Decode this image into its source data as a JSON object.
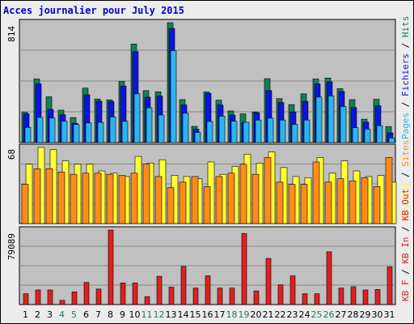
{
  "title": "Acces journalier pour July 2015",
  "colors": {
    "pages": "#2bb5f0",
    "fichiers": "#0a16dc",
    "hits": "#128055",
    "visites": "#ffff33",
    "sites": "#ff8c1a",
    "kbin": "#e02020",
    "day_label": "#000000",
    "weekend_label": "#227755",
    "plot_bg": "#c0c0c0"
  },
  "chart_data": [
    {
      "type": "bar",
      "panel": "top",
      "max_label": "814",
      "ylim": [
        0,
        814
      ],
      "legend": [
        "Pages",
        "/",
        "Fichiers",
        "/",
        "Hits"
      ],
      "categories": [
        "1",
        "2",
        "3",
        "4",
        "5",
        "6",
        "7",
        "8",
        "9",
        "10",
        "11",
        "12",
        "13",
        "14",
        "15",
        "16",
        "17",
        "18",
        "19",
        "20",
        "21",
        "22",
        "23",
        "24",
        "25",
        "26",
        "27",
        "28",
        "29",
        "30",
        "31"
      ],
      "series": [
        {
          "name": "Hits",
          "values": [
            205,
            432,
            311,
            220,
            170,
            370,
            296,
            290,
            415,
            669,
            353,
            345,
            814,
            292,
            110,
            344,
            288,
            215,
            195,
            208,
            434,
            299,
            258,
            331,
            432,
            438,
            366,
            292,
            159,
            294,
            109
          ]
        },
        {
          "name": "Fichiers",
          "values": [
            195,
            398,
            225,
            189,
            131,
            325,
            281,
            278,
            384,
            617,
            308,
            315,
            775,
            256,
            91,
            334,
            255,
            187,
            136,
            202,
            353,
            271,
            208,
            280,
            398,
            412,
            347,
            238,
            138,
            250,
            66
          ]
        },
        {
          "name": "Pages",
          "values": [
            103,
            171,
            167,
            145,
            123,
            133,
            137,
            174,
            145,
            331,
            236,
            187,
            625,
            199,
            68,
            143,
            179,
            145,
            138,
            153,
            166,
            153,
            123,
            153,
            309,
            317,
            245,
            101,
            91,
            115,
            31
          ]
        }
      ]
    },
    {
      "type": "bar",
      "panel": "middle",
      "max_label": "68",
      "ylim": [
        0,
        68
      ],
      "legend": [
        "Visites",
        "/",
        "Sites"
      ],
      "categories": [
        "1",
        "2",
        "3",
        "4",
        "5",
        "6",
        "7",
        "8",
        "9",
        "10",
        "11",
        "12",
        "13",
        "14",
        "15",
        "16",
        "17",
        "18",
        "19",
        "20",
        "21",
        "22",
        "23",
        "24",
        "25",
        "26",
        "27",
        "28",
        "29",
        "30",
        "31"
      ],
      "series": [
        {
          "name": "Visites",
          "values": [
            53,
            68,
            66,
            56,
            53,
            53,
            47,
            45,
            42,
            60,
            54,
            57,
            43,
            42,
            40,
            55,
            44,
            51,
            62,
            54,
            64,
            50,
            42,
            41,
            59,
            45,
            56,
            47,
            42,
            43,
            37
          ]
        },
        {
          "name": "Sites",
          "values": [
            35,
            49,
            49,
            46,
            44,
            45,
            45,
            44,
            43,
            45,
            53,
            42,
            32,
            37,
            42,
            33,
            42,
            45,
            53,
            44,
            59,
            37,
            35,
            35,
            55,
            37,
            40,
            38,
            41,
            33,
            59
          ]
        }
      ]
    },
    {
      "type": "bar",
      "panel": "bottom",
      "max_label": "79089",
      "ylim": [
        0,
        79089
      ],
      "legend": [
        "KB F",
        "/",
        "KB In",
        "/",
        "KB Out"
      ],
      "categories": [
        "1",
        "2",
        "3",
        "4",
        "5",
        "6",
        "7",
        "8",
        "9",
        "10",
        "11",
        "12",
        "13",
        "14",
        "15",
        "16",
        "17",
        "18",
        "19",
        "20",
        "21",
        "22",
        "23",
        "24",
        "25",
        "26",
        "27",
        "28",
        "29",
        "30",
        "31"
      ],
      "weekend_days": [
        "4",
        "5",
        "11",
        "12",
        "18",
        "19",
        "25",
        "26"
      ],
      "series": [
        {
          "name": "KB F",
          "values": [
            11500,
            15500,
            15500,
            4500,
            13500,
            23500,
            16500,
            79089,
            23000,
            23000,
            8500,
            30000,
            18500,
            40500,
            17500,
            30500,
            17500,
            17500,
            75500,
            14500,
            49000,
            21000,
            30500,
            11500,
            11500,
            56000,
            17500,
            19000,
            15500,
            16000,
            40000
          ]
        }
      ]
    }
  ]
}
